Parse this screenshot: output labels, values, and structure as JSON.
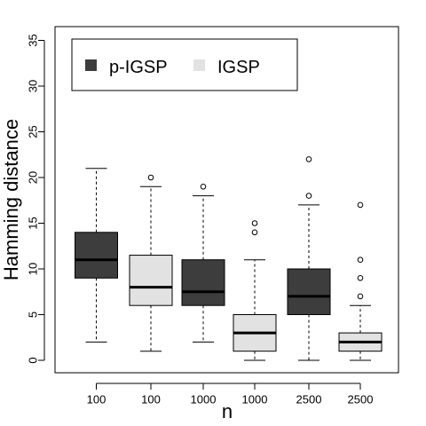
{
  "chart_data": {
    "type": "box",
    "xlabel": "n",
    "ylabel": "Hamming distance",
    "ylim": [
      0,
      35
    ],
    "yticks": [
      0,
      5,
      10,
      15,
      20,
      25,
      30,
      35
    ],
    "grid": false,
    "legend_position": "top-left",
    "legend": [
      {
        "name": "p-IGSP",
        "color": "#3d3d3d"
      },
      {
        "name": "IGSP",
        "color": "#e2e2e2"
      }
    ],
    "boxes": [
      {
        "category": "100",
        "series": "p-IGSP",
        "whisker_low": 2,
        "q1": 9,
        "median": 11,
        "q3": 14,
        "whisker_high": 21,
        "outliers": []
      },
      {
        "category": "100",
        "series": "IGSP",
        "whisker_low": 1,
        "q1": 6,
        "median": 8,
        "q3": 11.5,
        "whisker_high": 19,
        "outliers": [
          20
        ]
      },
      {
        "category": "1000",
        "series": "p-IGSP",
        "whisker_low": 2,
        "q1": 6,
        "median": 7.5,
        "q3": 11,
        "whisker_high": 18,
        "outliers": [
          19
        ]
      },
      {
        "category": "1000",
        "series": "IGSP",
        "whisker_low": 0,
        "q1": 1,
        "median": 3,
        "q3": 5,
        "whisker_high": 11,
        "outliers": [
          14,
          15
        ]
      },
      {
        "category": "2500",
        "series": "p-IGSP",
        "whisker_low": 0,
        "q1": 5,
        "median": 7,
        "q3": 10,
        "whisker_high": 17,
        "outliers": [
          18,
          22
        ]
      },
      {
        "category": "2500",
        "series": "IGSP",
        "whisker_low": 0,
        "q1": 1,
        "median": 2,
        "q3": 3,
        "whisker_high": 6,
        "outliers": [
          7,
          9,
          11,
          17
        ]
      }
    ]
  }
}
